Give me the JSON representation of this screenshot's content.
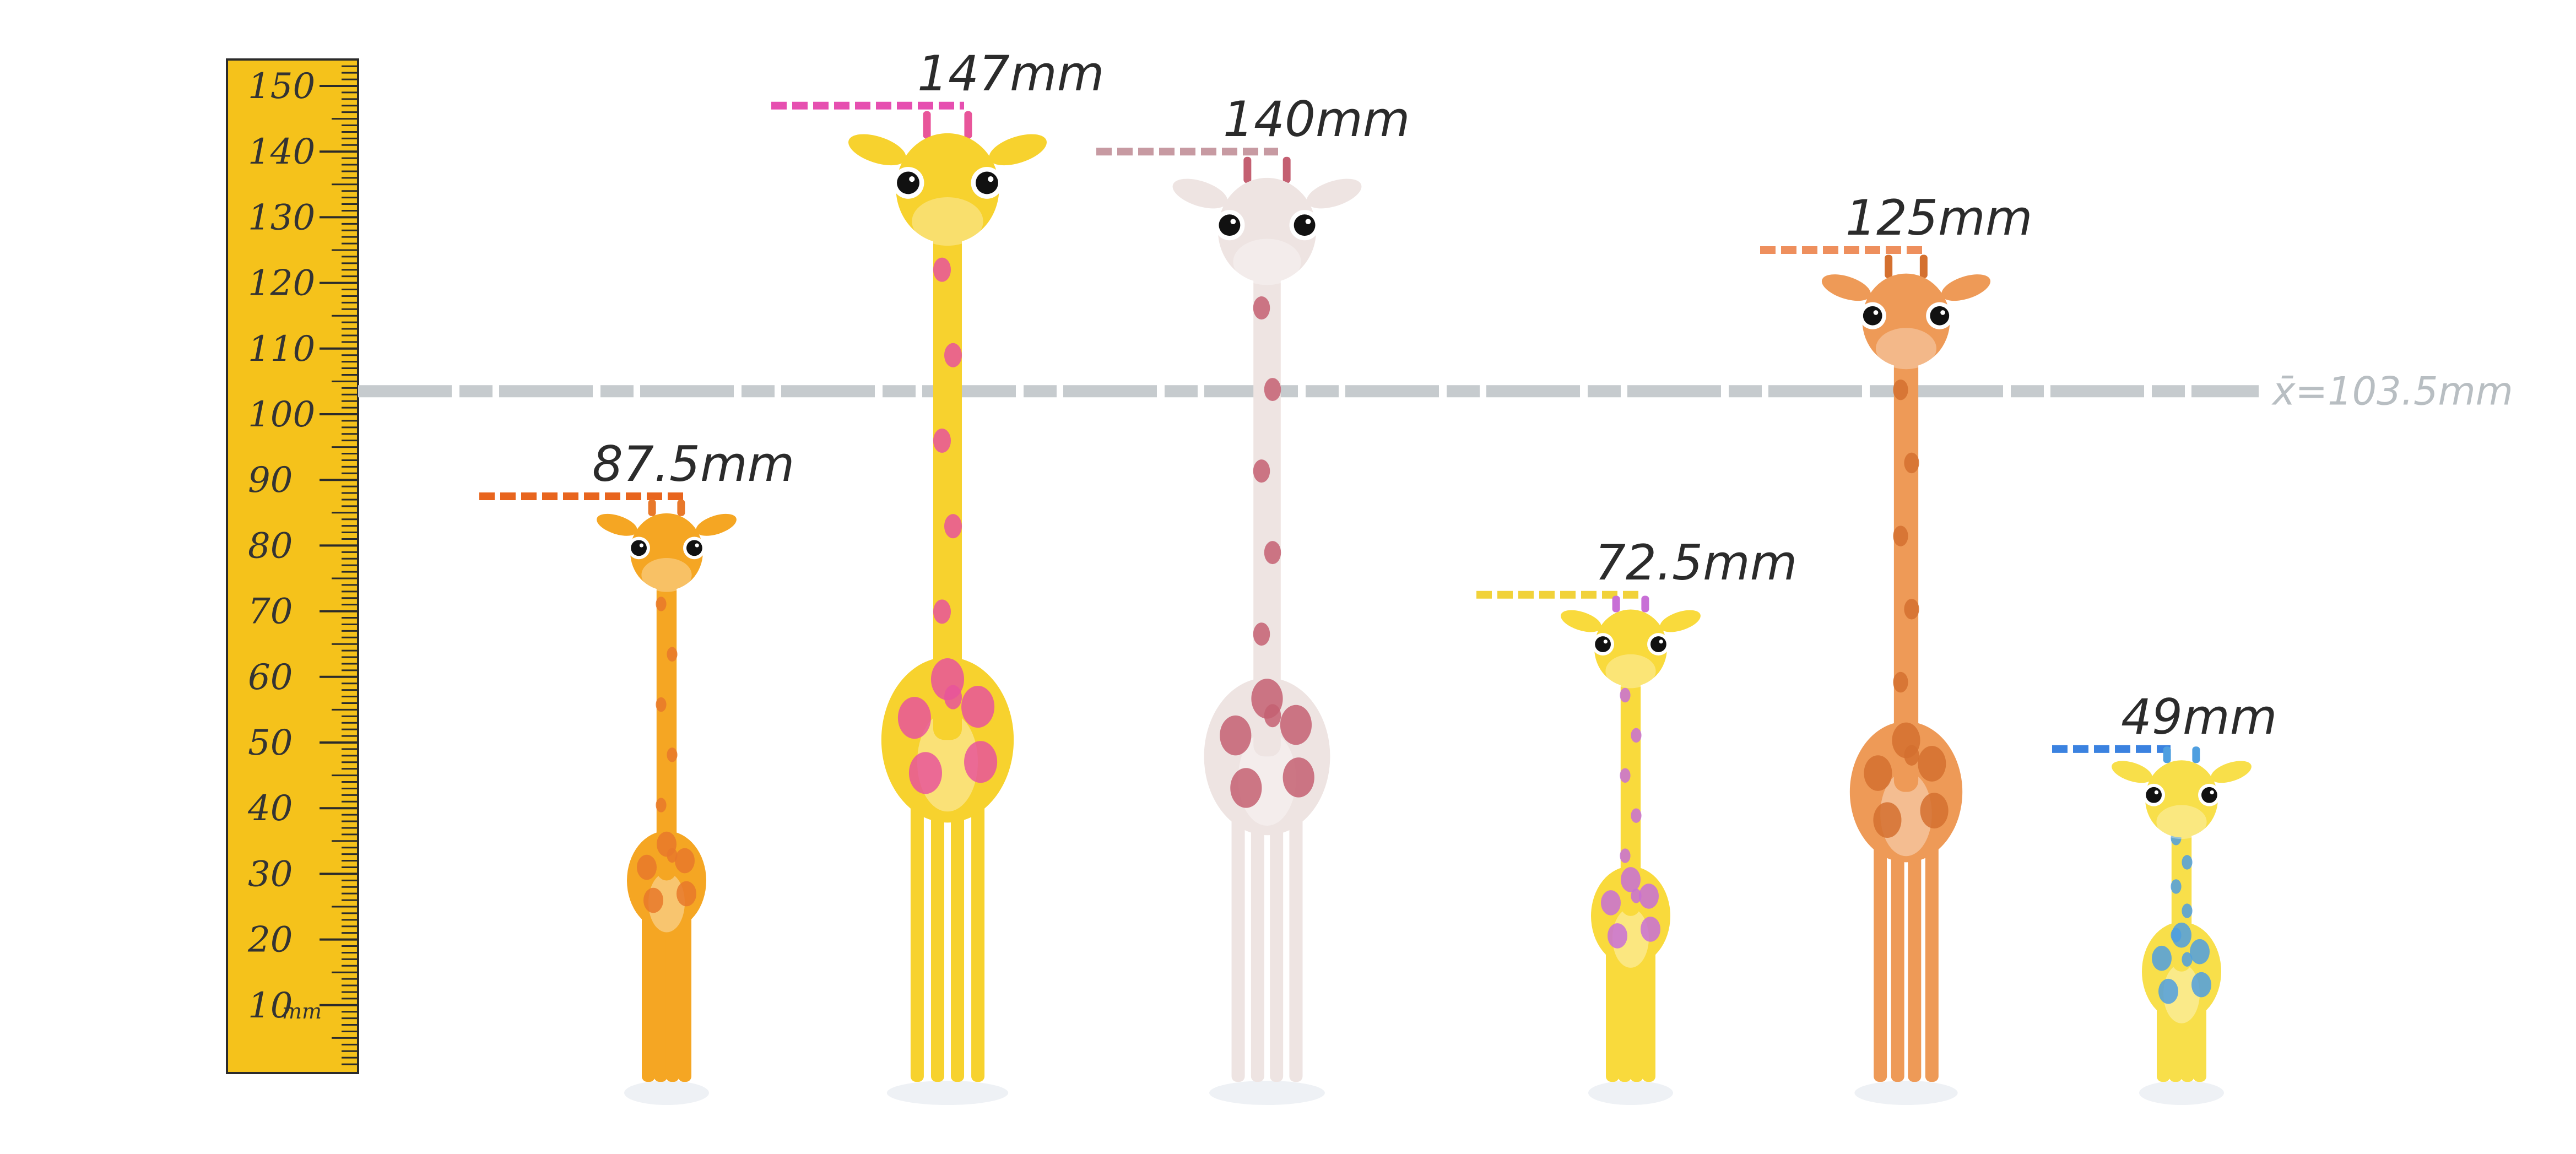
{
  "ruler": {
    "unit_label": "mm",
    "tick_labels": [
      "150",
      "140",
      "130",
      "120",
      "110",
      "100",
      "90",
      "80",
      "70",
      "60",
      "50",
      "40",
      "30",
      "20",
      "10"
    ],
    "color": "#f5c21b"
  },
  "mean": {
    "label": "x̄=103.5mm",
    "value_mm": 103.5,
    "color": "#c6cbce"
  },
  "giraffes": [
    {
      "height_mm": 87.5,
      "label": "87.5mm",
      "body_color": "#f5a623",
      "spot_color": "#e8782a",
      "marker_color": "#e8651e"
    },
    {
      "height_mm": 147,
      "label": "147mm",
      "body_color": "#f7d22e",
      "spot_color": "#e8559a",
      "marker_color": "#e64fb0"
    },
    {
      "height_mm": 140,
      "label": "140mm",
      "body_color": "#eee4e2",
      "spot_color": "#c46072",
      "marker_color": "#c79aa2"
    },
    {
      "height_mm": 72.5,
      "label": "72.5mm",
      "body_color": "#f9da3c",
      "spot_color": "#c86fd6",
      "marker_color": "#f1d23a"
    },
    {
      "height_mm": 125,
      "label": "125mm",
      "body_color": "#ee9a57",
      "spot_color": "#d4702f",
      "marker_color": "#ee8f5d"
    },
    {
      "height_mm": 49,
      "label": "49mm",
      "body_color": "#f8df4a",
      "spot_color": "#4f9fe0",
      "marker_color": "#3b82e0"
    }
  ]
}
